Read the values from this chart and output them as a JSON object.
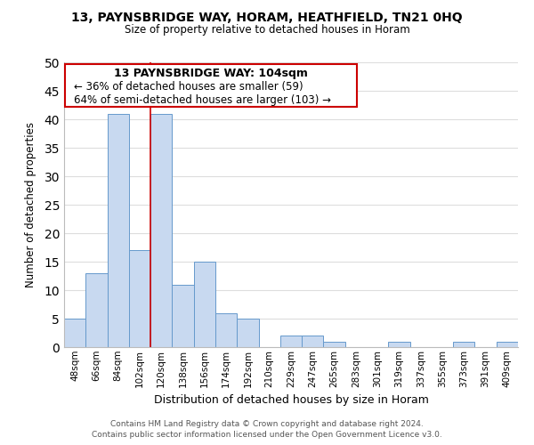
{
  "title": "13, PAYNSBRIDGE WAY, HORAM, HEATHFIELD, TN21 0HQ",
  "subtitle": "Size of property relative to detached houses in Horam",
  "bar_color": "#c8d9f0",
  "bar_edge_color": "#6699cc",
  "categories": [
    "48sqm",
    "66sqm",
    "84sqm",
    "102sqm",
    "120sqm",
    "138sqm",
    "156sqm",
    "174sqm",
    "192sqm",
    "210sqm",
    "229sqm",
    "247sqm",
    "265sqm",
    "283sqm",
    "301sqm",
    "319sqm",
    "337sqm",
    "355sqm",
    "373sqm",
    "391sqm",
    "409sqm"
  ],
  "values": [
    5,
    13,
    41,
    17,
    41,
    11,
    15,
    6,
    5,
    0,
    2,
    2,
    1,
    0,
    0,
    1,
    0,
    0,
    1,
    0,
    1
  ],
  "ylabel": "Number of detached properties",
  "xlabel": "Distribution of detached houses by size in Horam",
  "ylim": [
    0,
    50
  ],
  "yticks": [
    0,
    5,
    10,
    15,
    20,
    25,
    30,
    35,
    40,
    45,
    50
  ],
  "annotation_title": "13 PAYNSBRIDGE WAY: 104sqm",
  "annotation_line1": "← 36% of detached houses are smaller (59)",
  "annotation_line2": "64% of semi-detached houses are larger (103) →",
  "annotation_box_color": "#ffffff",
  "annotation_box_edge": "#cc0000",
  "property_line_x": 3.5,
  "property_line_color": "#cc0000",
  "footer_line1": "Contains HM Land Registry data © Crown copyright and database right 2024.",
  "footer_line2": "Contains public sector information licensed under the Open Government Licence v3.0.",
  "grid_color": "#dddddd",
  "background_color": "#ffffff"
}
